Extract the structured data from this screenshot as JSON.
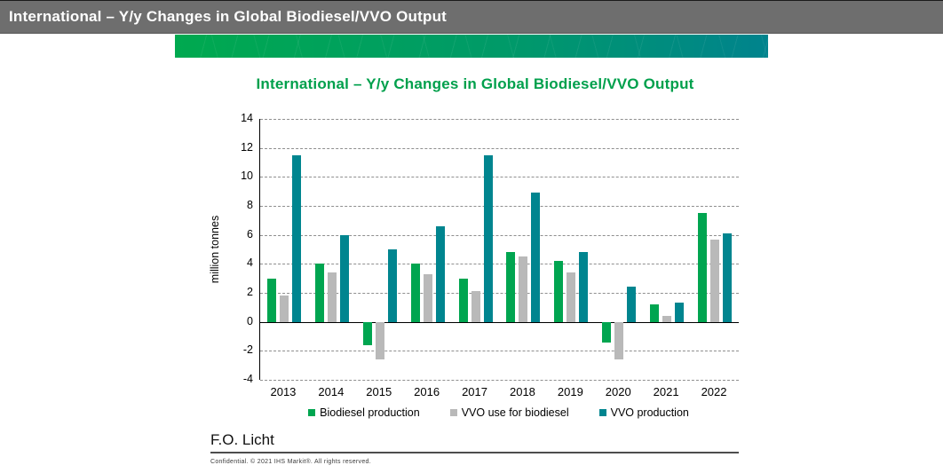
{
  "header": {
    "title": "International – Y/y Changes in Global Biodiesel/VVO Output",
    "background_color": "#6e6e6e",
    "text_color": "#ffffff"
  },
  "banner": {
    "gradient_left_color": "#00a94f",
    "gradient_right_color": "#00838d"
  },
  "chart_data": {
    "type": "bar",
    "title": "International – Y/y Changes in Global Biodiesel/VVO Output",
    "title_color": "#00a04c",
    "xlabel": "",
    "ylabel": "million tonnes",
    "ylim": [
      -4,
      14
    ],
    "ytick_step": 2,
    "grid": "horizontal dashed, solid zero line",
    "legend_position": "bottom center",
    "categories": [
      "2013",
      "2014",
      "2015",
      "2016",
      "2017",
      "2018",
      "2019",
      "2020",
      "2021",
      "2022"
    ],
    "series": [
      {
        "name": "Biodiesel production",
        "color": "#00a550",
        "values": [
          3.0,
          4.0,
          -1.6,
          4.0,
          3.0,
          4.8,
          4.2,
          -1.4,
          1.2,
          7.5
        ]
      },
      {
        "name": "VVO use for biodiesel",
        "color": "#b9b9b9",
        "values": [
          1.8,
          3.4,
          -2.6,
          3.3,
          2.1,
          4.5,
          3.4,
          -2.6,
          0.4,
          5.7
        ]
      },
      {
        "name": "VVO production",
        "color": "#00858f",
        "values": [
          11.5,
          6.0,
          5.0,
          6.6,
          11.5,
          8.9,
          4.8,
          2.4,
          1.3,
          6.1
        ]
      }
    ]
  },
  "footer": {
    "source": "F.O. Licht",
    "copyright": "Confidential. © 2021 IHS Markit®. All rights reserved."
  }
}
